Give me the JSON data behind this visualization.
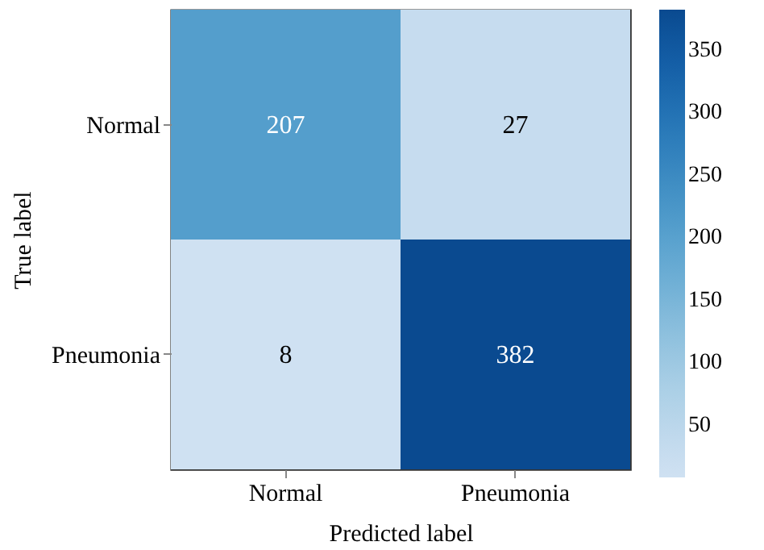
{
  "chart_data": {
    "type": "heatmap",
    "xlabel": "Predicted label",
    "ylabel": "True label",
    "categories": [
      "Normal",
      "Pneumonia"
    ],
    "y_categories": [
      "Normal",
      "Pneumonia"
    ],
    "cells": [
      [
        207,
        27
      ],
      [
        8,
        382
      ]
    ],
    "clim": [
      8,
      382
    ],
    "cticks": [
      50,
      100,
      150,
      200,
      250,
      300,
      350
    ],
    "data_labels": true
  }
}
